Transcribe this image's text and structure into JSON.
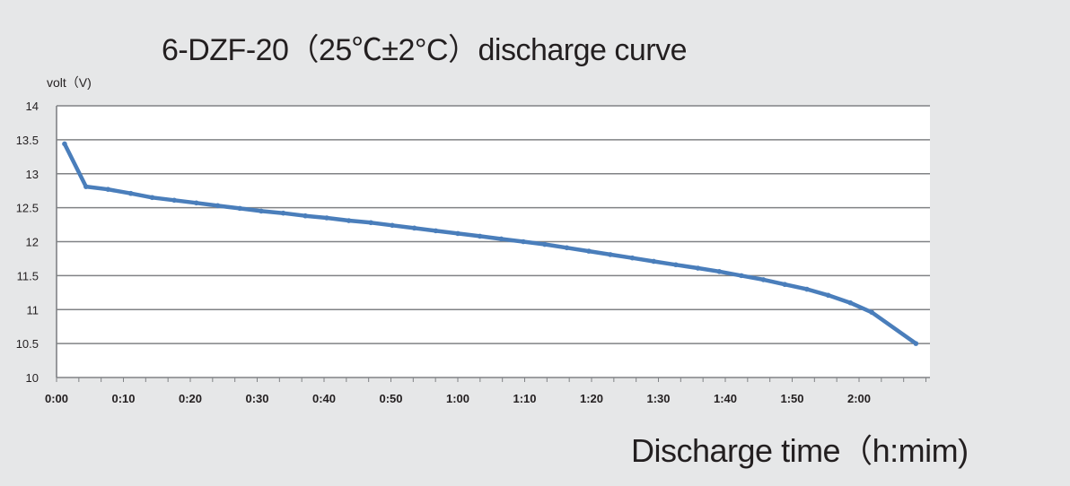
{
  "chart_data": {
    "type": "line",
    "title": "6-DZF-20（25℃±2°C）discharge curve",
    "ylabel": "volt（V)",
    "xlabel": "Discharge time（h:mim)",
    "ylim": [
      10,
      14
    ],
    "xlim_minutes": [
      0,
      130
    ],
    "grid": true,
    "y_ticks": [
      "10",
      "10.5",
      "11",
      "11.5",
      "12",
      "12.5",
      "13",
      "13.5",
      "14"
    ],
    "x_ticks": [
      "0:00",
      "0:10",
      "0:20",
      "0:30",
      "0:40",
      "0:50",
      "1:00",
      "1:10",
      "1:20",
      "1:30",
      "1:40",
      "1:50",
      "2:00"
    ],
    "series": [
      {
        "color": "#4a7ebb",
        "x": [
          "0:01",
          "0:04",
          "0:07",
          "0:11",
          "0:14",
          "0:17",
          "0:21",
          "0:24",
          "0:27",
          "0:31",
          "0:34",
          "0:37",
          "0:40",
          "0:44",
          "0:47",
          "0:50",
          "0:54",
          "0:57",
          "1:00",
          "1:04",
          "1:07",
          "1:10",
          "1:14",
          "1:17",
          "1:20",
          "1:24",
          "1:27",
          "1:30",
          "1:34",
          "1:37",
          "1:40",
          "1:44",
          "1:47",
          "1:50",
          "1:54",
          "1:57",
          "2:00",
          "2:04",
          "2:08"
        ],
        "x_minutes": [
          1.2,
          4.4,
          7.7,
          11.1,
          14.3,
          17.6,
          20.9,
          24.1,
          27.4,
          30.6,
          33.9,
          37.2,
          40.4,
          43.7,
          47.0,
          50.2,
          53.5,
          56.7,
          60.0,
          63.3,
          66.5,
          69.8,
          73.0,
          76.3,
          79.6,
          82.8,
          86.1,
          89.3,
          92.6,
          95.9,
          99.1,
          102.4,
          105.7,
          108.9,
          112.2,
          115.4,
          118.7,
          121.9,
          128.5
        ],
        "values": [
          13.44,
          12.81,
          12.77,
          12.71,
          12.65,
          12.61,
          12.57,
          12.53,
          12.49,
          12.45,
          12.42,
          12.38,
          12.35,
          12.31,
          12.28,
          12.24,
          12.2,
          12.16,
          12.12,
          12.08,
          12.04,
          12.0,
          11.96,
          11.91,
          11.86,
          11.81,
          11.76,
          11.71,
          11.66,
          11.61,
          11.56,
          11.5,
          11.44,
          11.37,
          11.3,
          11.21,
          11.1,
          10.96,
          10.5
        ]
      }
    ]
  }
}
